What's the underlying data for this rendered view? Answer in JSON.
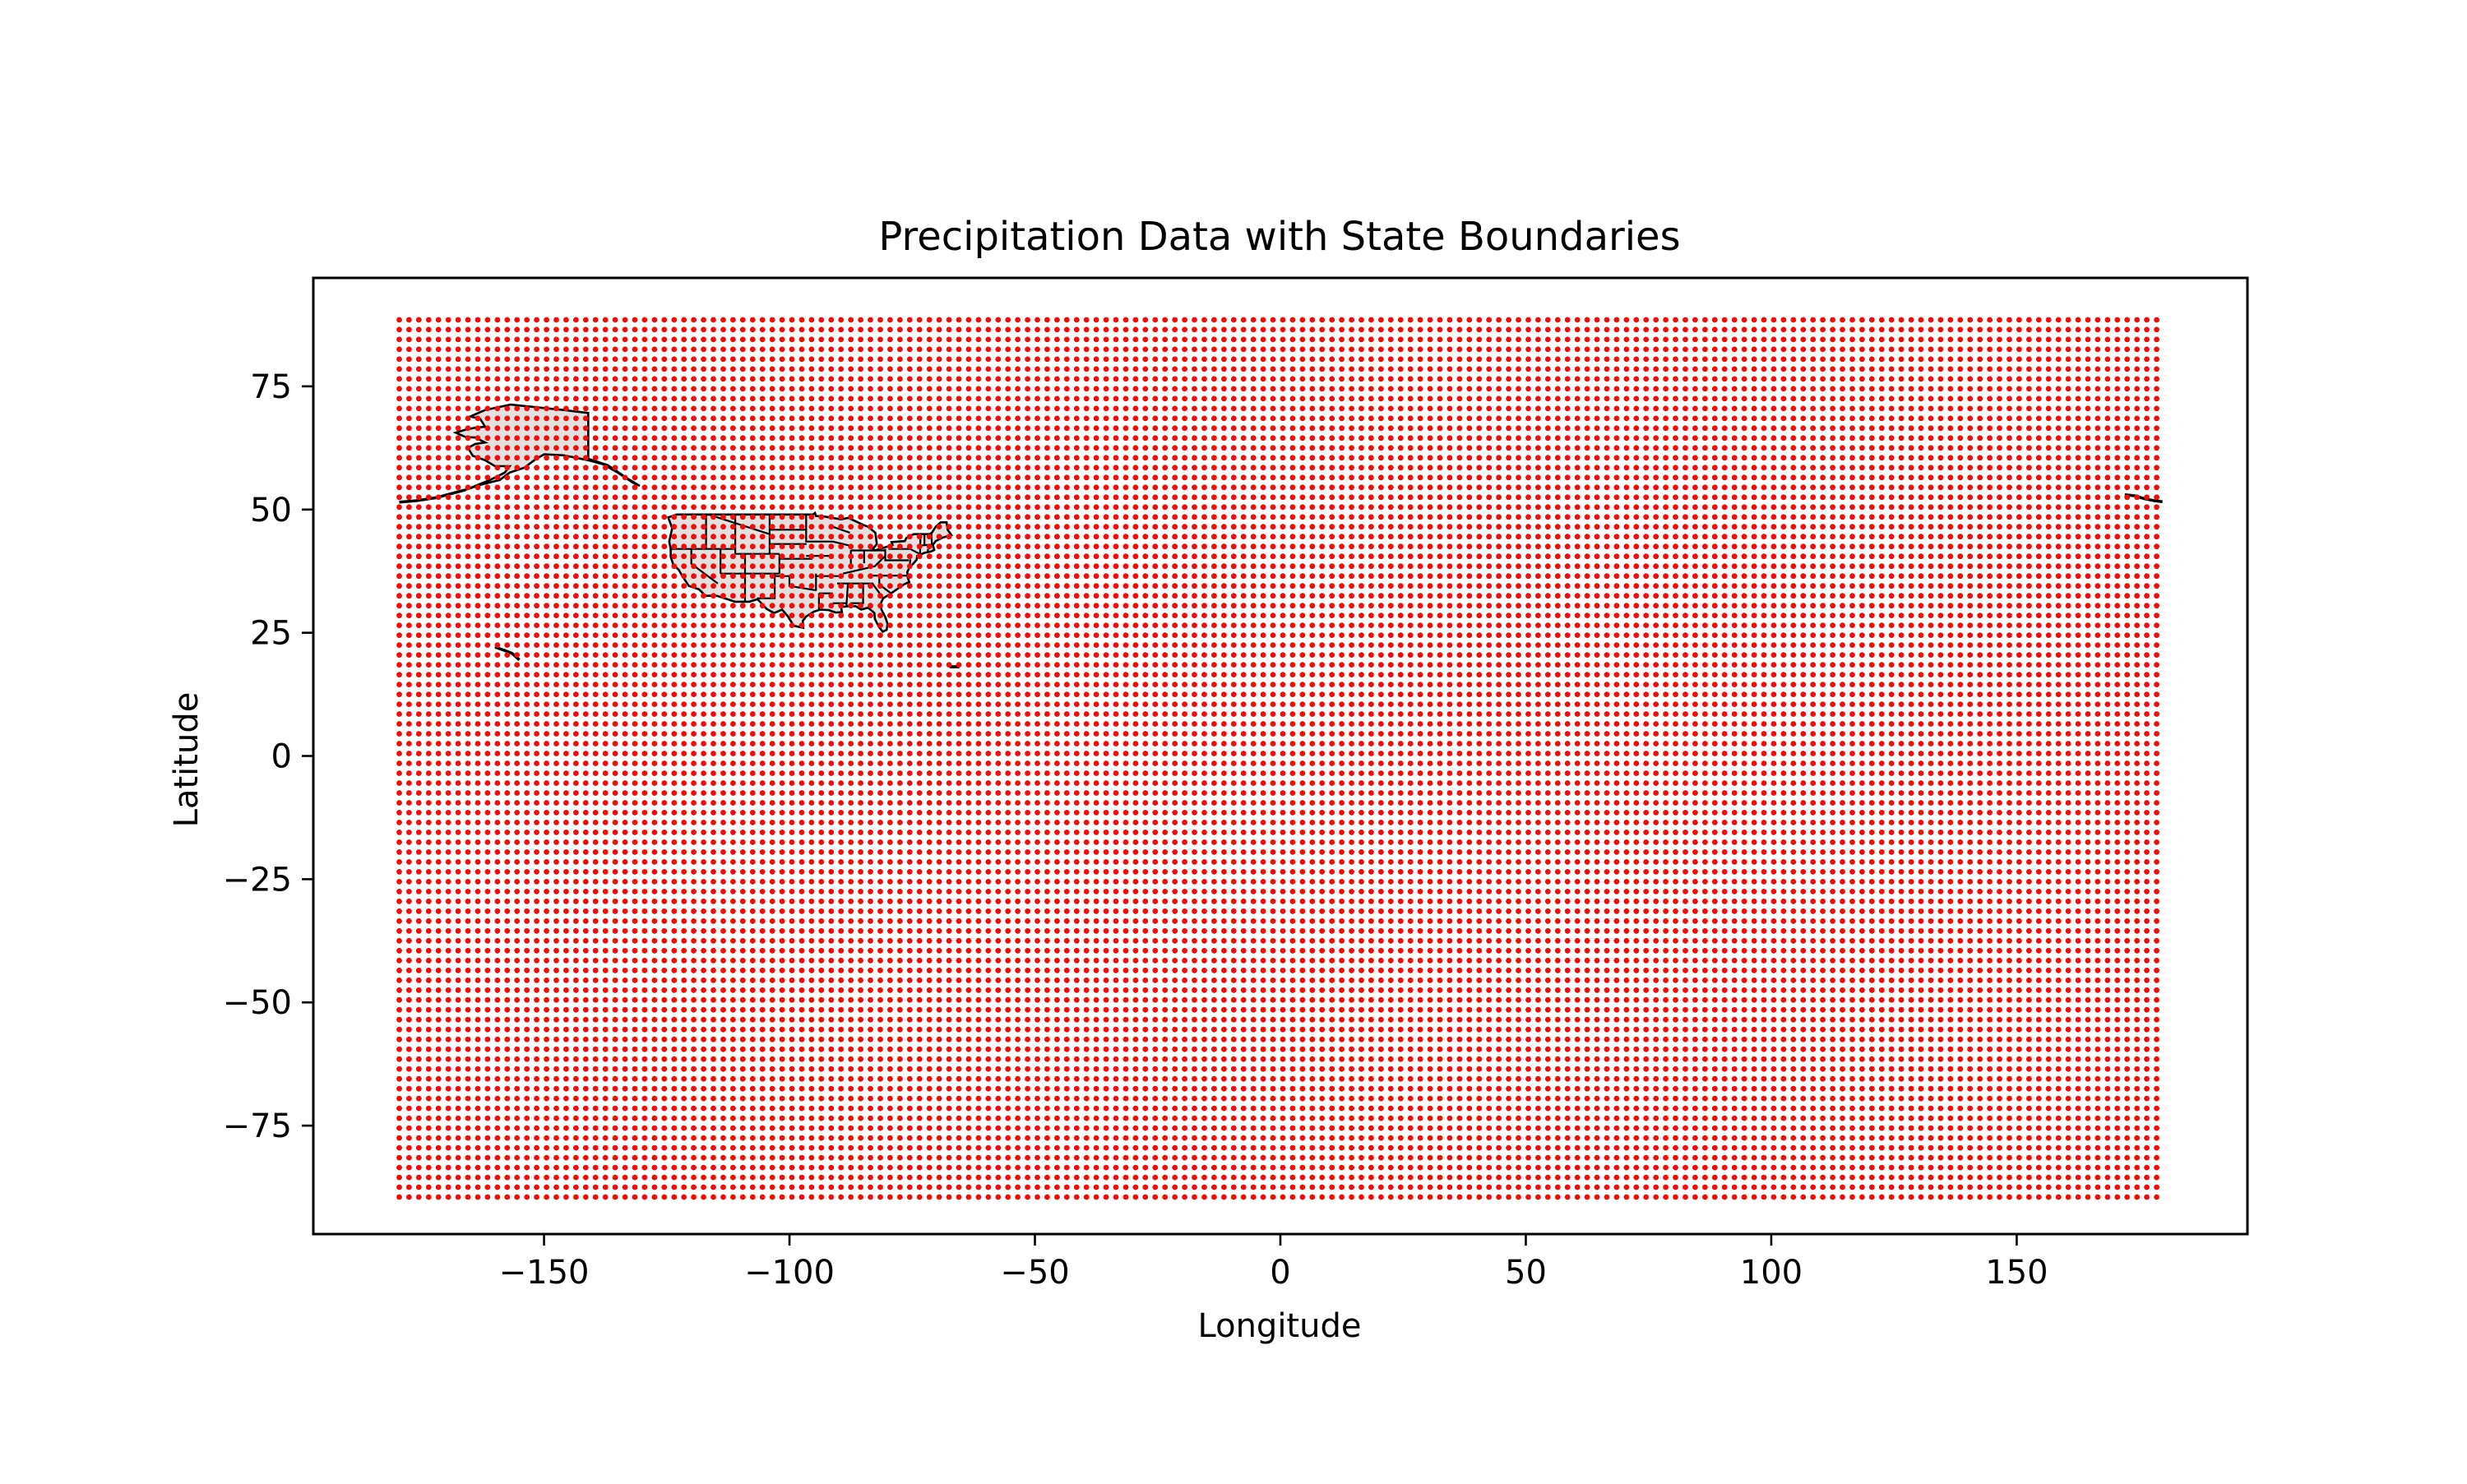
{
  "chart_data": {
    "type": "scatter",
    "title": "Precipitation Data with State Boundaries",
    "xlabel": "Longitude",
    "ylabel": "Latitude",
    "xlim": [
      -197,
      197
    ],
    "ylim": [
      -97,
      97
    ],
    "xticks": [
      -150,
      -100,
      -50,
      0,
      50,
      100,
      150
    ],
    "xtick_labels": [
      "−150",
      "−100",
      "−50",
      "0",
      "50",
      "100",
      "150"
    ],
    "yticks": [
      -75,
      -50,
      -25,
      0,
      25,
      50,
      75
    ],
    "ytick_labels": [
      "−75",
      "−50",
      "−25",
      "0",
      "25",
      "50",
      "75"
    ],
    "grid": false,
    "series": [
      {
        "kind": "points",
        "color": "#e8100c",
        "x_grid": {
          "start": -179.5,
          "stop": 179.5,
          "step": 2
        },
        "y_grid": {
          "start": -89.5,
          "stop": 89.5,
          "step": 2
        }
      }
    ],
    "overlay": {
      "kind": "state_boundaries",
      "fill": "#e7dede",
      "edge": "#000000",
      "shapes": [
        {
          "name": "Alaska",
          "lonlat": [
            [
              -141,
              69.6
            ],
            [
              -141,
              60.3
            ],
            [
              -137,
              59
            ],
            [
              -133,
              56.3
            ],
            [
              -130.5,
              54.8
            ],
            [
              -132,
              55.5
            ],
            [
              -135,
              57.5
            ],
            [
              -138,
              59.2
            ],
            [
              -141,
              60
            ],
            [
              -146,
              61
            ],
            [
              -150,
              61.2
            ],
            [
              -152,
              60
            ],
            [
              -154,
              58.5
            ],
            [
              -157,
              57.5
            ],
            [
              -159,
              56
            ],
            [
              -163,
              55
            ],
            [
              -166,
              54
            ],
            [
              -163,
              55.2
            ],
            [
              -161,
              56
            ],
            [
              -158,
              57.5
            ],
            [
              -157,
              58.8
            ],
            [
              -160,
              58.8
            ],
            [
              -162,
              60
            ],
            [
              -164.5,
              60.9
            ],
            [
              -165.5,
              62.5
            ],
            [
              -164,
              63.3
            ],
            [
              -162,
              63.6
            ],
            [
              -164,
              64.6
            ],
            [
              -166,
              64.7
            ],
            [
              -168,
              65.6
            ],
            [
              -166,
              66.2
            ],
            [
              -164,
              66.6
            ],
            [
              -162,
              66.8
            ],
            [
              -163,
              68.4
            ],
            [
              -165,
              68.9
            ],
            [
              -162,
              70.2
            ],
            [
              -156.8,
              71.3
            ],
            [
              -152,
              70.8
            ],
            [
              -146,
              70.2
            ],
            [
              -141,
              69.6
            ]
          ]
        },
        {
          "name": "Aleutian Islands",
          "lonlat": [
            [
              -166,
              54
            ],
            [
              -169,
              53.2
            ],
            [
              -172,
              52.4
            ],
            [
              -176,
              51.8
            ],
            [
              -179.5,
              51.5
            ]
          ],
          "open": true
        },
        {
          "name": "Aleutian West",
          "lonlat": [
            [
              172,
              53
            ],
            [
              174,
              52.8
            ],
            [
              176,
              52.2
            ],
            [
              178,
              51.8
            ],
            [
              179.7,
              51.6
            ]
          ],
          "open": true
        },
        {
          "name": "Hawaii",
          "lonlat": [
            [
              -160,
              22.1
            ],
            [
              -158,
              21.4
            ],
            [
              -156.5,
              20.8
            ],
            [
              -155.5,
              19.9
            ],
            [
              -155,
              19.5
            ]
          ],
          "open": true
        },
        {
          "name": "Puerto Rico",
          "lonlat": [
            [
              -67.3,
              18.2
            ],
            [
              -65.6,
              18.2
            ],
            [
              -65.6,
              18.0
            ],
            [
              -67.2,
              18.0
            ],
            [
              -67.3,
              18.2
            ]
          ]
        },
        {
          "name": "Contiguous US",
          "lonlat": [
            [
              -124.7,
              48.4
            ],
            [
              -123,
              49
            ],
            [
              -95.2,
              49
            ],
            [
              -94.8,
              49.3
            ],
            [
              -94.6,
              48.7
            ],
            [
              -93,
              48.6
            ],
            [
              -90,
              48.1
            ],
            [
              -89.5,
              48
            ],
            [
              -88,
              48.3
            ],
            [
              -84.8,
              46.8
            ],
            [
              -84,
              46.5
            ],
            [
              -82.5,
              45.3
            ],
            [
              -82.2,
              43
            ],
            [
              -83,
              42
            ],
            [
              -82.6,
              41.7
            ],
            [
              -79,
              42.8
            ],
            [
              -79.2,
              43.4
            ],
            [
              -76.5,
              43.6
            ],
            [
              -76.2,
              44.2
            ],
            [
              -74.7,
              45
            ],
            [
              -71.5,
              45
            ],
            [
              -71,
              45.3
            ],
            [
              -70.2,
              46.5
            ],
            [
              -69.2,
              47.4
            ],
            [
              -68,
              47.4
            ],
            [
              -67.8,
              45.9
            ],
            [
              -67,
              44.8
            ],
            [
              -68.8,
              44.3
            ],
            [
              -70.2,
              43.6
            ],
            [
              -70.8,
              42.8
            ],
            [
              -70.5,
              41.8
            ],
            [
              -71.1,
              41.5
            ],
            [
              -72.5,
              41.2
            ],
            [
              -74,
              40.6
            ],
            [
              -74.1,
              39.8
            ],
            [
              -74.9,
              38.9
            ],
            [
              -75.5,
              38.4
            ],
            [
              -76,
              37.3
            ],
            [
              -75.9,
              36.2
            ],
            [
              -75.6,
              35.3
            ],
            [
              -76.7,
              34.8
            ],
            [
              -78,
              33.9
            ],
            [
              -79.3,
              33
            ],
            [
              -80.9,
              32
            ],
            [
              -81.4,
              31
            ],
            [
              -81.3,
              29.8
            ],
            [
              -80.5,
              28.2
            ],
            [
              -80,
              26.8
            ],
            [
              -80.2,
              25.6
            ],
            [
              -81,
              25.2
            ],
            [
              -81.8,
              26.2
            ],
            [
              -82.6,
              27.8
            ],
            [
              -82.7,
              29
            ],
            [
              -84,
              30.1
            ],
            [
              -85.4,
              29.7
            ],
            [
              -86.5,
              30.4
            ],
            [
              -88,
              30.4
            ],
            [
              -89.5,
              30.2
            ],
            [
              -89.3,
              29.2
            ],
            [
              -90.6,
              29.1
            ],
            [
              -92,
              29.6
            ],
            [
              -93.8,
              29.7
            ],
            [
              -95,
              29.3
            ],
            [
              -96.6,
              28.3
            ],
            [
              -97.3,
              27.4
            ],
            [
              -97.2,
              26
            ],
            [
              -99.1,
              26.4
            ],
            [
              -100.4,
              28.4
            ],
            [
              -101.5,
              29.7
            ],
            [
              -103.1,
              29
            ],
            [
              -104.6,
              29.8
            ],
            [
              -106.5,
              31.8
            ],
            [
              -108.2,
              31.3
            ],
            [
              -111.1,
              31.3
            ],
            [
              -114.8,
              32.5
            ],
            [
              -117.1,
              32.5
            ],
            [
              -118.4,
              33.8
            ],
            [
              -120.5,
              34.5
            ],
            [
              -121.9,
              36.6
            ],
            [
              -122.5,
              37.7
            ],
            [
              -123.7,
              38.9
            ],
            [
              -124.2,
              40.4
            ],
            [
              -124.2,
              42
            ],
            [
              -124.5,
              43.5
            ],
            [
              -123.9,
              46.2
            ],
            [
              -124.7,
              48.4
            ]
          ]
        }
      ],
      "internal_boundaries": [
        [
          [
            -117.0,
            49
          ],
          [
            -117.0,
            42.0
          ]
        ],
        [
          [
            -124.2,
            42.0
          ],
          [
            -111.05,
            42.0
          ]
        ],
        [
          [
            -111.05,
            49
          ],
          [
            -111.05,
            41.0
          ]
        ],
        [
          [
            -120.0,
            42.0
          ],
          [
            -120.0,
            39.0
          ],
          [
            -114.6,
            35.0
          ]
        ],
        [
          [
            -114.05,
            42.0
          ],
          [
            -114.05,
            37.0
          ]
        ],
        [
          [
            -114.05,
            37.0
          ],
          [
            -102.05,
            37.0
          ]
        ],
        [
          [
            -109.05,
            41.0
          ],
          [
            -109.05,
            31.3
          ]
        ],
        [
          [
            -111.05,
            41.0
          ],
          [
            -102.05,
            41.0
          ]
        ],
        [
          [
            -104.05,
            49
          ],
          [
            -104.05,
            41.0
          ]
        ],
        [
          [
            -116.5,
            49
          ],
          [
            -104.05,
            45.0
          ]
        ],
        [
          [
            -104.05,
            45.9
          ],
          [
            -96.6,
            45.9
          ]
        ],
        [
          [
            -104.05,
            43.0
          ],
          [
            -96.5,
            43.0
          ]
        ],
        [
          [
            -102.05,
            41.0
          ],
          [
            -102.05,
            37.0
          ]
        ],
        [
          [
            -102.05,
            40.0
          ],
          [
            -95.3,
            40.0
          ]
        ],
        [
          [
            -103.0,
            37.0
          ],
          [
            -103.0,
            32.0
          ],
          [
            -106.6,
            32.0
          ]
        ],
        [
          [
            -103.0,
            36.5
          ],
          [
            -100.0,
            36.5
          ],
          [
            -100.0,
            34.5
          ],
          [
            -94.5,
            33.6
          ]
        ],
        [
          [
            -94.6,
            37.0
          ],
          [
            -94.6,
            33.6
          ]
        ],
        [
          [
            -94.6,
            36.5
          ],
          [
            -89.7,
            36.5
          ]
        ],
        [
          [
            -96.6,
            49
          ],
          [
            -96.6,
            43.5
          ],
          [
            -91.2,
            43.5
          ]
        ],
        [
          [
            -96.6,
            40.6
          ],
          [
            -91.4,
            40.6
          ]
        ],
        [
          [
            -94.0,
            33.0
          ],
          [
            -91.2,
            33.0
          ]
        ],
        [
          [
            -94.0,
            33.0
          ],
          [
            -94.0,
            29.7
          ]
        ],
        [
          [
            -91.2,
            31.0
          ],
          [
            -88.4,
            31.0
          ]
        ],
        [
          [
            -90.3,
            35.0
          ],
          [
            -85.6,
            35.0
          ],
          [
            -84.3,
            35.0
          ]
        ],
        [
          [
            -88.1,
            35.0
          ],
          [
            -88.4,
            30.4
          ]
        ],
        [
          [
            -85.0,
            35.0
          ],
          [
            -85.0,
            31.0
          ],
          [
            -87.6,
            31.0
          ]
        ],
        [
          [
            -91.2,
            46.5
          ],
          [
            -87.7,
            45.3
          ]
        ],
        [
          [
            -91.2,
            43.5
          ],
          [
            -87.0,
            42.5
          ]
        ],
        [
          [
            -87.5,
            41.8
          ],
          [
            -87.5,
            37.9
          ]
        ],
        [
          [
            -84.8,
            41.7
          ],
          [
            -84.8,
            39.1
          ]
        ],
        [
          [
            -87.5,
            41.7
          ],
          [
            -80.5,
            41.7
          ]
        ],
        [
          [
            -89.1,
            37.0
          ],
          [
            -82.6,
            38.5
          ],
          [
            -80.5,
            40.6
          ]
        ],
        [
          [
            -80.5,
            42.0
          ],
          [
            -80.5,
            39.7
          ],
          [
            -75.7,
            39.7
          ]
        ],
        [
          [
            -83.7,
            36.6
          ],
          [
            -75.9,
            36.6
          ]
        ],
        [
          [
            -81.7,
            36.6
          ],
          [
            -81.7,
            34.8
          ],
          [
            -79.3,
            33.0
          ]
        ],
        [
          [
            -84.3,
            35.0
          ],
          [
            -83.1,
            35.0
          ],
          [
            -80.9,
            32.0
          ]
        ],
        [
          [
            -79.8,
            42.0
          ],
          [
            -75.4,
            42.0
          ],
          [
            -73.5,
            41.0
          ]
        ],
        [
          [
            -75.4,
            39.9
          ],
          [
            -75.5,
            38.4
          ]
        ],
        [
          [
            -73.3,
            45.0
          ],
          [
            -73.4,
            41.0
          ]
        ],
        [
          [
            -73.3,
            42.7
          ],
          [
            -70.9,
            42.9
          ]
        ],
        [
          [
            -72.5,
            45.0
          ],
          [
            -72.5,
            42.7
          ]
        ],
        [
          [
            -71.1,
            45.3
          ],
          [
            -71.0,
            43.0
          ]
        ],
        [
          [
            -71.8,
            42.0
          ],
          [
            -71.8,
            41.3
          ]
        ]
      ]
    }
  }
}
